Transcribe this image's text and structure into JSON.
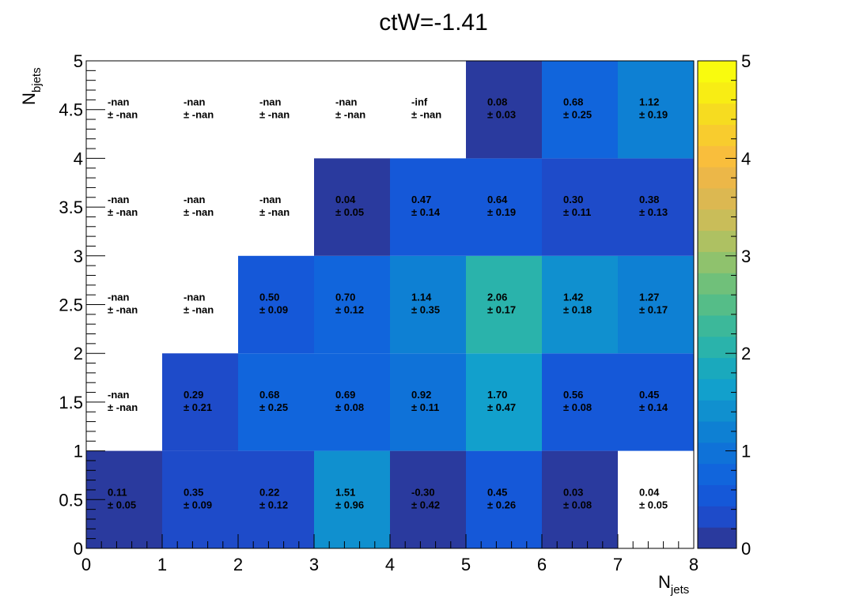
{
  "chart_data": {
    "type": "heatmap",
    "title": "ctW=-1.41",
    "xlabel": "N",
    "xlabel_sub": "jets",
    "ylabel": "N",
    "ylabel_sub": "bjets",
    "xlim": [
      0,
      8
    ],
    "ylim": [
      0,
      5
    ],
    "zlim": [
      0,
      5
    ],
    "x_ticks": [
      "0",
      "1",
      "2",
      "3",
      "4",
      "5",
      "6",
      "7",
      "8"
    ],
    "y_ticks": [
      "0",
      "0.5",
      "1",
      "1.5",
      "2",
      "2.5",
      "3",
      "3.5",
      "4",
      "4.5",
      "5"
    ],
    "z_ticks": [
      "0",
      "1",
      "2",
      "3",
      "4",
      "5"
    ],
    "palette": [
      "#2a3a9e",
      "#1e4bc9",
      "#1558d8",
      "#1165dc",
      "#0f72d8",
      "#0e80d3",
      "#1090cf",
      "#12a0cc",
      "#1aa9bd",
      "#2ab3ab",
      "#3cb89a",
      "#55bd88",
      "#70c07a",
      "#8fc26d",
      "#aec162",
      "#c9bd59",
      "#dcb851",
      "#ecb748",
      "#f9be3c",
      "#f8cc2e",
      "#f6dc20",
      "#f8ed14",
      "#f9fb0e"
    ],
    "cells": [
      {
        "x": 0,
        "y": 0,
        "value": 0.11,
        "label": "0.11",
        "error": "± 0.05"
      },
      {
        "x": 1,
        "y": 0,
        "value": 0.35,
        "label": "0.35",
        "error": "± 0.09"
      },
      {
        "x": 2,
        "y": 0,
        "value": 0.22,
        "label": "0.22",
        "error": "± 0.12"
      },
      {
        "x": 3,
        "y": 0,
        "value": 1.51,
        "label": "1.51",
        "error": "± 0.96"
      },
      {
        "x": 4,
        "y": 0,
        "value": -0.3,
        "label": "-0.30",
        "error": "± 0.42"
      },
      {
        "x": 5,
        "y": 0,
        "value": 0.45,
        "label": "0.45",
        "error": "± 0.26"
      },
      {
        "x": 6,
        "y": 0,
        "value": 0.03,
        "label": "0.03",
        "error": "± 0.08"
      },
      {
        "x": 7,
        "y": 0,
        "value": 0.04,
        "label": "0.04",
        "error": "± 0.05",
        "empty": true
      },
      {
        "x": 0,
        "y": 1,
        "value": null,
        "label": "-nan",
        "error": "± -nan"
      },
      {
        "x": 1,
        "y": 1,
        "value": 0.29,
        "label": "0.29",
        "error": "± 0.21"
      },
      {
        "x": 2,
        "y": 1,
        "value": 0.68,
        "label": "0.68",
        "error": "± 0.25"
      },
      {
        "x": 3,
        "y": 1,
        "value": 0.69,
        "label": "0.69",
        "error": "± 0.08"
      },
      {
        "x": 4,
        "y": 1,
        "value": 0.92,
        "label": "0.92",
        "error": "± 0.11"
      },
      {
        "x": 5,
        "y": 1,
        "value": 1.7,
        "label": "1.70",
        "error": "± 0.47"
      },
      {
        "x": 6,
        "y": 1,
        "value": 0.56,
        "label": "0.56",
        "error": "± 0.08"
      },
      {
        "x": 7,
        "y": 1,
        "value": 0.45,
        "label": "0.45",
        "error": "± 0.14"
      },
      {
        "x": 0,
        "y": 2,
        "value": null,
        "label": "-nan",
        "error": "± -nan"
      },
      {
        "x": 1,
        "y": 2,
        "value": null,
        "label": "-nan",
        "error": "± -nan"
      },
      {
        "x": 2,
        "y": 2,
        "value": 0.5,
        "label": "0.50",
        "error": "± 0.09"
      },
      {
        "x": 3,
        "y": 2,
        "value": 0.7,
        "label": "0.70",
        "error": "± 0.12"
      },
      {
        "x": 4,
        "y": 2,
        "value": 1.14,
        "label": "1.14",
        "error": "± 0.35"
      },
      {
        "x": 5,
        "y": 2,
        "value": 2.06,
        "label": "2.06",
        "error": "± 0.17"
      },
      {
        "x": 6,
        "y": 2,
        "value": 1.42,
        "label": "1.42",
        "error": "± 0.18"
      },
      {
        "x": 7,
        "y": 2,
        "value": 1.27,
        "label": "1.27",
        "error": "± 0.17"
      },
      {
        "x": 0,
        "y": 3,
        "value": null,
        "label": "-nan",
        "error": "± -nan"
      },
      {
        "x": 1,
        "y": 3,
        "value": null,
        "label": "-nan",
        "error": "± -nan"
      },
      {
        "x": 2,
        "y": 3,
        "value": null,
        "label": "-nan",
        "error": "± -nan"
      },
      {
        "x": 3,
        "y": 3,
        "value": 0.04,
        "label": "0.04",
        "error": "± 0.05"
      },
      {
        "x": 4,
        "y": 3,
        "value": 0.47,
        "label": "0.47",
        "error": "± 0.14"
      },
      {
        "x": 5,
        "y": 3,
        "value": 0.64,
        "label": "0.64",
        "error": "± 0.19"
      },
      {
        "x": 6,
        "y": 3,
        "value": 0.3,
        "label": "0.30",
        "error": "± 0.11"
      },
      {
        "x": 7,
        "y": 3,
        "value": 0.38,
        "label": "0.38",
        "error": "± 0.13"
      },
      {
        "x": 0,
        "y": 4,
        "value": null,
        "label": "-nan",
        "error": "± -nan"
      },
      {
        "x": 1,
        "y": 4,
        "value": null,
        "label": "-nan",
        "error": "± -nan"
      },
      {
        "x": 2,
        "y": 4,
        "value": null,
        "label": "-nan",
        "error": "± -nan"
      },
      {
        "x": 3,
        "y": 4,
        "value": null,
        "label": "-nan",
        "error": "± -nan"
      },
      {
        "x": 4,
        "y": 4,
        "value": null,
        "label": "-inf",
        "error": "± -nan"
      },
      {
        "x": 5,
        "y": 4,
        "value": 0.08,
        "label": "0.08",
        "error": "± 0.03"
      },
      {
        "x": 6,
        "y": 4,
        "value": 0.68,
        "label": "0.68",
        "error": "± 0.25"
      },
      {
        "x": 7,
        "y": 4,
        "value": 1.12,
        "label": "1.12",
        "error": "± 0.19"
      }
    ]
  }
}
